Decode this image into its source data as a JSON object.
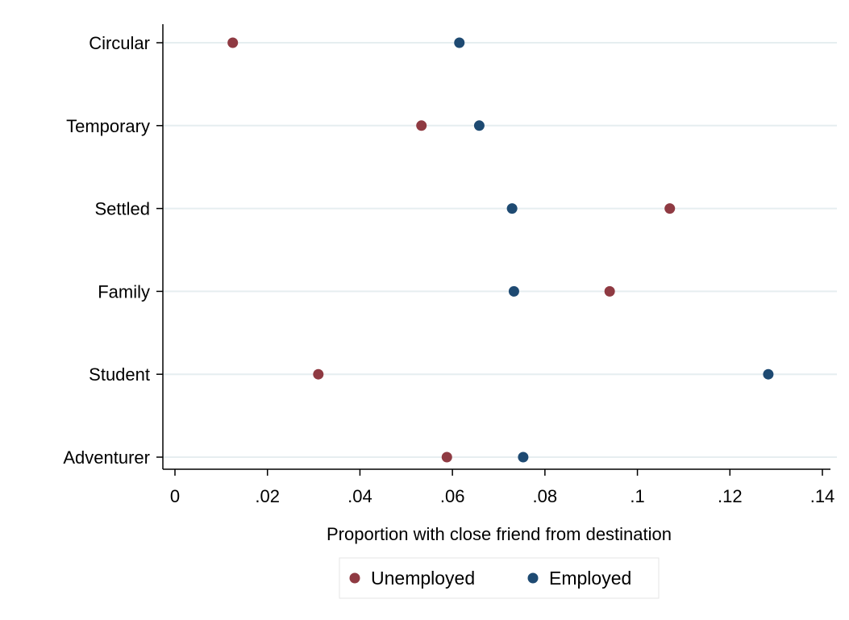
{
  "chart_data": {
    "type": "scatter",
    "title": "",
    "xlabel": "Proportion with close friend from destination",
    "ylabel": "",
    "categories": [
      "Circular",
      "Temporary",
      "Settled",
      "Family",
      "Student",
      "Adventurer"
    ],
    "x_ticks": [
      0,
      0.02,
      0.04,
      0.06,
      0.08,
      0.1,
      0.12,
      0.14
    ],
    "x_tick_labels": [
      "0",
      ".02",
      ".04",
      ".06",
      ".08",
      ".1",
      ".12",
      ".14"
    ],
    "xlim": [
      0,
      0.14
    ],
    "grid": true,
    "legend_position": "bottom",
    "series": [
      {
        "name": "Unemployed",
        "color": "#8f3a42",
        "values": [
          0.0125,
          0.0533,
          0.107,
          0.094,
          0.031,
          0.0588
        ]
      },
      {
        "name": "Employed",
        "color": "#1e4a72",
        "values": [
          0.0615,
          0.0658,
          0.0729,
          0.0733,
          0.1283,
          0.0753
        ]
      }
    ]
  }
}
